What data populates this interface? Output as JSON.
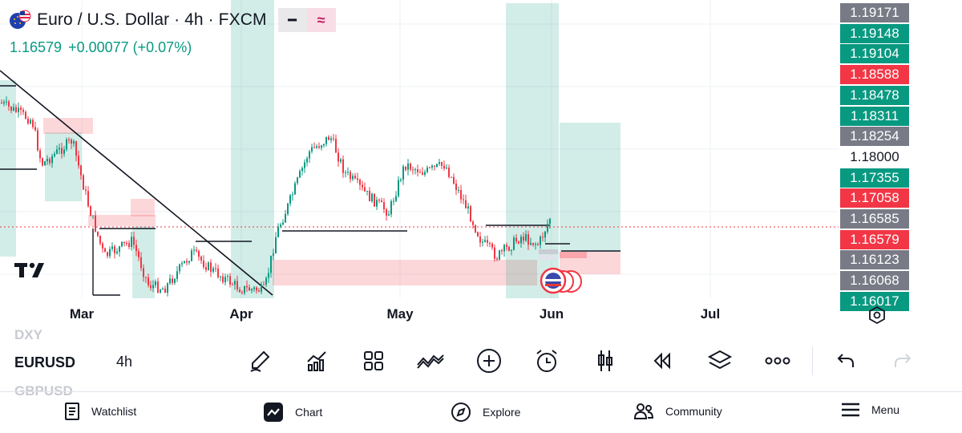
{
  "header": {
    "title": "Euro / U.S. Dollar · 4h · FXCM",
    "price": "1.16579",
    "change": "+0.00077 (+0.07%)",
    "minimize_glyph": "━",
    "compare_glyph": "≈"
  },
  "axis": {
    "months": [
      "Mar",
      "Apr",
      "May",
      "Jun",
      "Jul"
    ]
  },
  "price_scale": [
    {
      "value": "1.19171",
      "color": "#787b86"
    },
    {
      "value": "1.19148",
      "color": "#089981"
    },
    {
      "value": "1.19104",
      "color": "#089981"
    },
    {
      "value": "1.18588",
      "color": "#f23645"
    },
    {
      "value": "1.18478",
      "color": "#089981"
    },
    {
      "value": "1.18311",
      "color": "#089981"
    },
    {
      "value": "1.18254",
      "color": "#787b86"
    },
    {
      "value": "1.18000",
      "color": ""
    },
    {
      "value": "1.17355",
      "color": "#089981"
    },
    {
      "value": "1.17058",
      "color": "#f23645"
    },
    {
      "value": "1.16585",
      "color": "#787b86"
    },
    {
      "value": "1.16579",
      "color": "#f23645"
    },
    {
      "value": "1.16123",
      "color": "#787b86"
    },
    {
      "value": "1.16068",
      "color": "#787b86"
    },
    {
      "value": "1.16017",
      "color": "#089981"
    }
  ],
  "toolbar": {
    "ghost_above": "DXY",
    "ticker": "EURUSD",
    "ghost_below": "GBPUSD",
    "interval": "4h",
    "icons": [
      "pencil-icon",
      "indicators-icon",
      "layouts-icon",
      "compare-icon",
      "add-icon",
      "alarm-icon",
      "candles-icon",
      "replay-icon",
      "layers-icon",
      "more-icon",
      "undo-icon",
      "redo-icon"
    ]
  },
  "nav": {
    "items": [
      "Watchlist",
      "Chart",
      "Explore",
      "Community",
      "Menu"
    ]
  },
  "colors": {
    "up": "#089981",
    "down": "#f23645",
    "neutral": "#787b86",
    "accent_pink": "#c2185b"
  }
}
